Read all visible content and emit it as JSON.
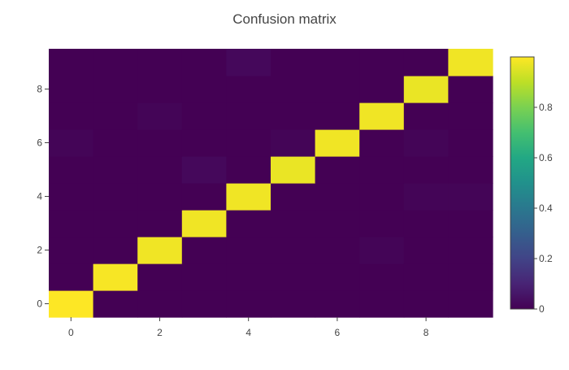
{
  "chart_data": {
    "type": "heatmap",
    "title": "Confusion matrix",
    "x": [
      0,
      1,
      2,
      3,
      4,
      5,
      6,
      7,
      8,
      9
    ],
    "y": [
      0,
      1,
      2,
      3,
      4,
      5,
      6,
      7,
      8,
      9
    ],
    "x_ticks": [
      "0",
      "2",
      "4",
      "6",
      "8"
    ],
    "y_ticks": [
      "0",
      "2",
      "4",
      "6",
      "8"
    ],
    "z": [
      [
        1.0,
        0.0,
        0.0,
        0.0,
        0.0,
        0.0,
        0.0,
        0.0,
        0.0,
        0.0
      ],
      [
        0.0,
        0.99,
        0.0,
        0.0,
        0.0,
        0.0,
        0.0,
        0.0,
        0.0,
        0.0
      ],
      [
        0.0,
        0.0,
        0.98,
        0.0,
        0.0,
        0.0,
        0.0,
        0.01,
        0.0,
        0.0
      ],
      [
        0.0,
        0.0,
        0.0,
        0.98,
        0.0,
        0.0,
        0.0,
        0.0,
        0.0,
        0.0
      ],
      [
        0.0,
        0.0,
        0.0,
        0.0,
        0.98,
        0.0,
        0.0,
        0.0,
        0.01,
        0.01
      ],
      [
        0.0,
        0.0,
        0.0,
        0.02,
        0.0,
        0.97,
        0.0,
        0.0,
        0.0,
        0.0
      ],
      [
        0.01,
        0.0,
        0.0,
        0.0,
        0.0,
        0.01,
        0.98,
        0.0,
        0.01,
        0.0
      ],
      [
        0.0,
        0.0,
        0.01,
        0.0,
        0.0,
        0.0,
        0.0,
        0.98,
        0.0,
        0.0
      ],
      [
        0.0,
        0.0,
        0.0,
        0.0,
        0.0,
        0.0,
        0.0,
        0.0,
        0.97,
        0.0
      ],
      [
        0.0,
        0.0,
        0.0,
        0.0,
        0.02,
        0.0,
        0.0,
        0.0,
        0.0,
        0.98
      ]
    ],
    "zlim": [
      0,
      1
    ],
    "colorscale": "viridis",
    "colorbar_ticks": [
      "0",
      "0.2",
      "0.4",
      "0.6",
      "0.8"
    ],
    "colorbar_tick_values": [
      0,
      0.2,
      0.4,
      0.6,
      0.8
    ],
    "grid": false
  }
}
